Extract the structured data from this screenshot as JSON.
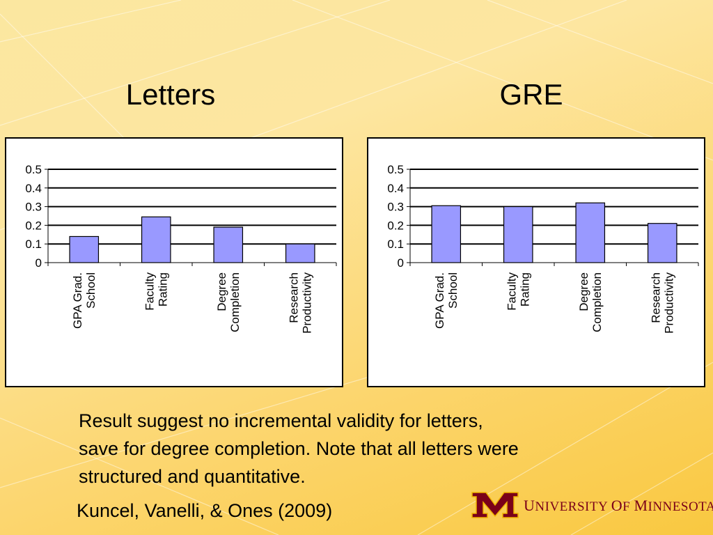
{
  "slide": {
    "caption_lines": [
      "Result suggest no incremental validity for letters,",
      "save for degree completion.  Note that all letters were",
      "structured and quantitative."
    ],
    "citation": "Kuncel, Vanelli, & Ones (2009)",
    "logo_text": "University of Minnesota",
    "logo_color": "#7a0019",
    "background_colors": [
      "#fde6a0",
      "#f9c840"
    ]
  },
  "chart_data": [
    {
      "type": "bar",
      "title": "Letters",
      "categories": [
        "GPA Grad. School",
        "Faculty Rating",
        "Degree Completion",
        "Research Productivity"
      ],
      "category_lines": [
        [
          "GPA Grad.",
          "School"
        ],
        [
          "Faculty",
          "Rating"
        ],
        [
          "Degree",
          "Completion"
        ],
        [
          "Research",
          "Productivity"
        ]
      ],
      "values": [
        0.14,
        0.245,
        0.19,
        0.1
      ],
      "ylim": [
        0,
        0.5
      ],
      "yticks": [
        "0",
        "0.1",
        "0.2",
        "0.3",
        "0.4",
        "0.5"
      ],
      "grid": true,
      "bar_color": "#9999ff"
    },
    {
      "type": "bar",
      "title": "GRE",
      "categories": [
        "GPA Grad. School",
        "Faculty Rating",
        "Degree Completion",
        "Research Productivity"
      ],
      "category_lines": [
        [
          "GPA Grad.",
          "School"
        ],
        [
          "Faculty",
          "Rating"
        ],
        [
          "Degree",
          "Completion"
        ],
        [
          "Research",
          "Productivity"
        ]
      ],
      "values": [
        0.305,
        0.3,
        0.32,
        0.21
      ],
      "ylim": [
        0,
        0.5
      ],
      "yticks": [
        "0",
        "0.1",
        "0.2",
        "0.3",
        "0.4",
        "0.5"
      ],
      "grid": true,
      "bar_color": "#9999ff"
    }
  ]
}
